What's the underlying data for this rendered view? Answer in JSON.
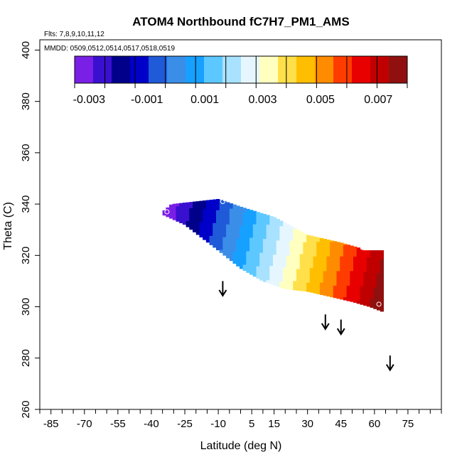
{
  "chart_data": {
    "type": "heatmap",
    "title": "ATOM4 Northbound fC7H7_PM1_AMS",
    "flights_note": "Flts: 7,8,9,10,11,12",
    "dates_note": "MMDD: 0509,0512,0514,0517,0518,0519",
    "xlabel": "Latitude (deg N)",
    "ylabel": "Theta (C)",
    "xlim": [
      -90,
      90
    ],
    "ylim": [
      260,
      404
    ],
    "x_ticks": [
      -85,
      -70,
      -55,
      -40,
      -25,
      -10,
      5,
      15,
      30,
      45,
      60,
      75
    ],
    "x_minor_ticks": [
      -90,
      -80,
      -75,
      -65,
      -60,
      -50,
      -45,
      -35,
      -30,
      -20,
      -15,
      -5,
      0,
      10,
      20,
      25,
      35,
      40,
      50,
      55,
      65,
      70,
      80,
      85,
      90
    ],
    "y_ticks": [
      260,
      280,
      300,
      320,
      340,
      360,
      380,
      400
    ],
    "colorbar": {
      "min": -0.0035,
      "max": 0.008,
      "tick_values": [
        -0.003,
        -0.001,
        0.001,
        0.003,
        0.005,
        0.007
      ],
      "tick_labels": [
        "-0.003",
        "-0.001",
        "0.001",
        "0.003",
        "0.005",
        "0.007"
      ],
      "colors": [
        "#7a1fe6",
        "#3a10d0",
        "#00008b",
        "#0000c8",
        "#1f5ad8",
        "#3b8ee8",
        "#16a0ff",
        "#5cc8ff",
        "#a8e2ff",
        "#e6f6ff",
        "#ffffc0",
        "#ffe04a",
        "#ffbf00",
        "#ff8c00",
        "#ff3c00",
        "#e80000",
        "#c00000",
        "#901010"
      ]
    },
    "field": {
      "x_range": [
        -35,
        64
      ],
      "theta_top_points": [
        [
          -35,
          337
        ],
        [
          -31,
          340
        ],
        [
          -10,
          342
        ],
        [
          0,
          339
        ],
        [
          15,
          335
        ],
        [
          30,
          328
        ],
        [
          45,
          325
        ],
        [
          53,
          323
        ],
        [
          55,
          322
        ]
      ],
      "theta_bottom_points": [
        [
          -35,
          336
        ],
        [
          -25,
          332
        ],
        [
          -10,
          322
        ],
        [
          0,
          315
        ],
        [
          10,
          310
        ],
        [
          20,
          307
        ],
        [
          30,
          306
        ],
        [
          40,
          304
        ],
        [
          50,
          302
        ],
        [
          58,
          300
        ],
        [
          64,
          298
        ]
      ],
      "note": "values estimated from colors"
    },
    "marker_circles": [
      [
        -33,
        337
      ],
      [
        -8,
        341
      ],
      [
        55,
        323
      ],
      [
        62,
        301
      ]
    ],
    "arrows": [
      {
        "lat": -8,
        "theta": 305
      },
      {
        "lat": 38,
        "theta": 292
      },
      {
        "lat": 45,
        "theta": 290
      },
      {
        "lat": 67,
        "theta": 276
      }
    ]
  }
}
